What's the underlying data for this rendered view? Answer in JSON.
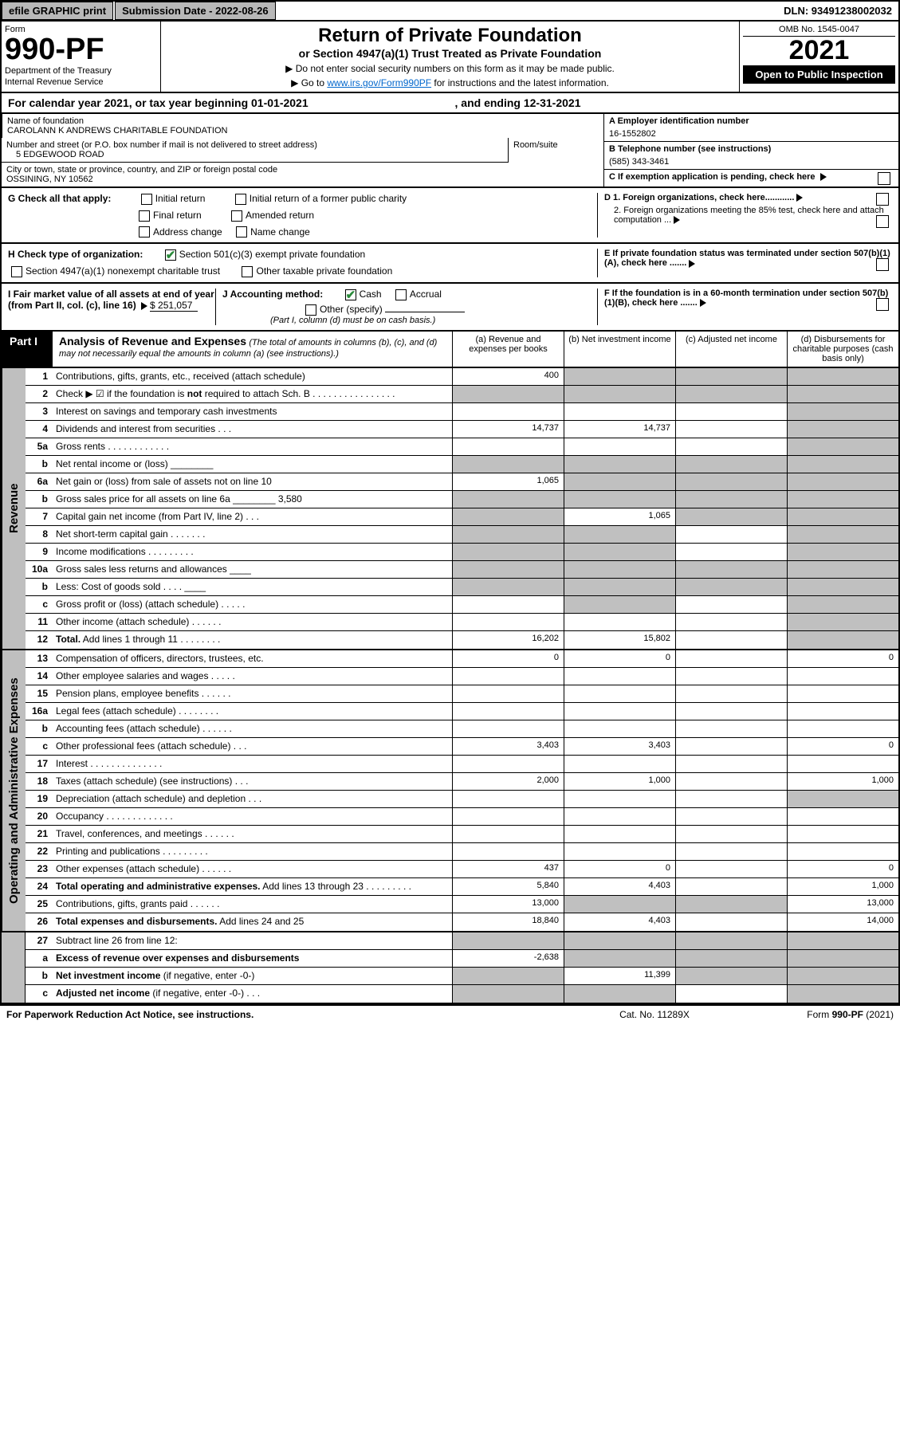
{
  "topbar": {
    "efile": "efile GRAPHIC print",
    "submission": "Submission Date - 2022-08-26",
    "dln": "DLN: 93491238002032"
  },
  "header": {
    "form_label": "Form",
    "form_number": "990-PF",
    "dept1": "Department of the Treasury",
    "dept2": "Internal Revenue Service",
    "title": "Return of Private Foundation",
    "subtitle": "or Section 4947(a)(1) Trust Treated as Private Foundation",
    "instr1": "▶ Do not enter social security numbers on this form as it may be made public.",
    "instr2_pre": "▶ Go to ",
    "instr2_link": "www.irs.gov/Form990PF",
    "instr2_post": " for instructions and the latest information.",
    "omb": "OMB No. 1545-0047",
    "year": "2021",
    "open": "Open to Public Inspection"
  },
  "calyear": {
    "text": "For calendar year 2021, or tax year beginning 01-01-2021",
    "ending": ", and ending 12-31-2021"
  },
  "info": {
    "name_label": "Name of foundation",
    "name": "CAROLANN K ANDREWS CHARITABLE FOUNDATION",
    "addr_label": "Number and street (or P.O. box number if mail is not delivered to street address)",
    "addr": "5 EDGEWOOD ROAD",
    "room_label": "Room/suite",
    "city_label": "City or town, state or province, country, and ZIP or foreign postal code",
    "city": "OSSINING, NY  10562",
    "a_label": "A Employer identification number",
    "a_val": "16-1552802",
    "b_label": "B Telephone number (see instructions)",
    "b_val": "(585) 343-3461",
    "c_label": "C If exemption application is pending, check here"
  },
  "g": {
    "label": "G Check all that apply:",
    "initial": "Initial return",
    "initial_former": "Initial return of a former public charity",
    "final": "Final return",
    "amended": "Amended return",
    "addr_change": "Address change",
    "name_change": "Name change"
  },
  "h": {
    "label": "H Check type of organization:",
    "s501": "Section 501(c)(3) exempt private foundation",
    "s4947": "Section 4947(a)(1) nonexempt charitable trust",
    "other_tax": "Other taxable private foundation"
  },
  "i": {
    "label": "I Fair market value of all assets at end of year (from Part II, col. (c), line 16)",
    "val": "$  251,057"
  },
  "j": {
    "label": "J Accounting method:",
    "cash": "Cash",
    "accrual": "Accrual",
    "other": "Other (specify)",
    "note": "(Part I, column (d) must be on cash basis.)"
  },
  "d": {
    "d1": "D 1. Foreign organizations, check here............",
    "d2": "2. Foreign organizations meeting the 85% test, check here and attach computation ...",
    "e": "E  If private foundation status was terminated under section 507(b)(1)(A), check here .......",
    "f": "F  If the foundation is in a 60-month termination under section 507(b)(1)(B), check here ......."
  },
  "part1": {
    "label": "Part I",
    "title": "Analysis of Revenue and Expenses",
    "note": " (The total of amounts in columns (b), (c), and (d) may not necessarily equal the amounts in column (a) (see instructions).)",
    "col_a": "(a) Revenue and expenses per books",
    "col_b": "(b) Net investment income",
    "col_c": "(c) Adjusted net income",
    "col_d": "(d) Disbursements for charitable purposes (cash basis only)"
  },
  "sides": {
    "revenue": "Revenue",
    "opex": "Operating and Administrative Expenses"
  },
  "rows": [
    {
      "n": "1",
      "d": "Contributions, gifts, grants, etc., received (attach schedule)",
      "a": "400",
      "b": "",
      "bg": [
        "",
        "g",
        "g",
        "g"
      ]
    },
    {
      "n": "2",
      "d": "Check ▶ ☑ if the foundation is <b>not</b> required to attach Sch. B  .  .  .  .  .  .  .  .  .  .  .  .  .  .  .  .",
      "bg": [
        "g",
        "g",
        "g",
        "g"
      ]
    },
    {
      "n": "3",
      "d": "Interest on savings and temporary cash investments",
      "bg": [
        "",
        "",
        "",
        "g"
      ]
    },
    {
      "n": "4",
      "d": "Dividends and interest from securities  .  .  .",
      "a": "14,737",
      "b": "14,737",
      "bg": [
        "",
        "",
        "",
        "g"
      ]
    },
    {
      "n": "5a",
      "d": "Gross rents  .  .  .  .  .  .  .  .  .  .  .  .",
      "bg": [
        "",
        "",
        "",
        "g"
      ]
    },
    {
      "n": "b",
      "d": "Net rental income or (loss)  ________",
      "bg": [
        "g",
        "g",
        "g",
        "g"
      ]
    },
    {
      "n": "6a",
      "d": "Net gain or (loss) from sale of assets not on line 10",
      "a": "1,065",
      "bg": [
        "",
        "g",
        "g",
        "g"
      ]
    },
    {
      "n": "b",
      "d": "Gross sales price for all assets on line 6a ________ 3,580",
      "bg": [
        "g",
        "g",
        "g",
        "g"
      ]
    },
    {
      "n": "7",
      "d": "Capital gain net income (from Part IV, line 2)  .  .  .",
      "b": "1,065",
      "bg": [
        "g",
        "",
        "g",
        "g"
      ]
    },
    {
      "n": "8",
      "d": "Net short-term capital gain  .  .  .  .  .  .  .",
      "bg": [
        "g",
        "g",
        "",
        "g"
      ]
    },
    {
      "n": "9",
      "d": "Income modifications  .  .  .  .  .  .  .  .  .",
      "bg": [
        "g",
        "g",
        "",
        "g"
      ]
    },
    {
      "n": "10a",
      "d": "Gross sales less returns and allowances  ____",
      "bg": [
        "g",
        "g",
        "g",
        "g"
      ]
    },
    {
      "n": "b",
      "d": "Less: Cost of goods sold  .  .  .  .  ____",
      "bg": [
        "g",
        "g",
        "g",
        "g"
      ]
    },
    {
      "n": "c",
      "d": "Gross profit or (loss) (attach schedule)  .  .  .  .  .",
      "bg": [
        "",
        "g",
        "",
        "g"
      ]
    },
    {
      "n": "11",
      "d": "Other income (attach schedule)  .  .  .  .  .  .",
      "bg": [
        "",
        "",
        "",
        "g"
      ]
    },
    {
      "n": "12",
      "d": "<b>Total.</b> Add lines 1 through 11  .  .  .  .  .  .  .  .",
      "a": "16,202",
      "b": "15,802",
      "bg": [
        "",
        "",
        "",
        "g"
      ]
    }
  ],
  "rows2": [
    {
      "n": "13",
      "d": "Compensation of officers, directors, trustees, etc.",
      "a": "0",
      "b": "0",
      "dcol": "0",
      "bg": [
        "",
        "",
        "",
        ""
      ]
    },
    {
      "n": "14",
      "d": "Other employee salaries and wages  .  .  .  .  .",
      "bg": [
        "",
        "",
        "",
        ""
      ]
    },
    {
      "n": "15",
      "d": "Pension plans, employee benefits  .  .  .  .  .  .",
      "bg": [
        "",
        "",
        "",
        ""
      ]
    },
    {
      "n": "16a",
      "d": "Legal fees (attach schedule)  .  .  .  .  .  .  .  .",
      "bg": [
        "",
        "",
        "",
        ""
      ]
    },
    {
      "n": "b",
      "d": "Accounting fees (attach schedule)  .  .  .  .  .  .",
      "bg": [
        "",
        "",
        "",
        ""
      ]
    },
    {
      "n": "c",
      "d": "Other professional fees (attach schedule)  .  .  .",
      "a": "3,403",
      "b": "3,403",
      "dcol": "0",
      "bg": [
        "",
        "",
        "",
        ""
      ]
    },
    {
      "n": "17",
      "d": "Interest  .  .  .  .  .  .  .  .  .  .  .  .  .  .",
      "bg": [
        "",
        "",
        "",
        ""
      ]
    },
    {
      "n": "18",
      "d": "Taxes (attach schedule) (see instructions)  .  .  .",
      "a": "2,000",
      "b": "1,000",
      "dcol": "1,000",
      "bg": [
        "",
        "",
        "",
        ""
      ]
    },
    {
      "n": "19",
      "d": "Depreciation (attach schedule) and depletion  .  .  .",
      "bg": [
        "",
        "",
        "",
        "g"
      ]
    },
    {
      "n": "20",
      "d": "Occupancy  .  .  .  .  .  .  .  .  .  .  .  .  .",
      "bg": [
        "",
        "",
        "",
        ""
      ]
    },
    {
      "n": "21",
      "d": "Travel, conferences, and meetings  .  .  .  .  .  .",
      "bg": [
        "",
        "",
        "",
        ""
      ]
    },
    {
      "n": "22",
      "d": "Printing and publications  .  .  .  .  .  .  .  .  .",
      "bg": [
        "",
        "",
        "",
        ""
      ]
    },
    {
      "n": "23",
      "d": "Other expenses (attach schedule)  .  .  .  .  .  .",
      "a": "437",
      "b": "0",
      "dcol": "0",
      "bg": [
        "",
        "",
        "",
        ""
      ]
    },
    {
      "n": "24",
      "d": "<b>Total operating and administrative expenses.</b> Add lines 13 through 23  .  .  .  .  .  .  .  .  .",
      "a": "5,840",
      "b": "4,403",
      "dcol": "1,000",
      "bg": [
        "",
        "",
        "",
        ""
      ]
    },
    {
      "n": "25",
      "d": "Contributions, gifts, grants paid  .  .  .  .  .  .",
      "a": "13,000",
      "dcol": "13,000",
      "bg": [
        "",
        "g",
        "g",
        ""
      ]
    },
    {
      "n": "26",
      "d": "<b>Total expenses and disbursements.</b> Add lines 24 and 25",
      "a": "18,840",
      "b": "4,403",
      "dcol": "14,000",
      "bg": [
        "",
        "",
        "",
        ""
      ]
    }
  ],
  "rows3": [
    {
      "n": "27",
      "d": "Subtract line 26 from line 12:",
      "bg": [
        "g",
        "g",
        "g",
        "g"
      ]
    },
    {
      "n": "a",
      "d": "<b>Excess of revenue over expenses and disbursements</b>",
      "a": "-2,638",
      "bg": [
        "",
        "g",
        "g",
        "g"
      ]
    },
    {
      "n": "b",
      "d": "<b>Net investment income</b> (if negative, enter -0-)",
      "b": "11,399",
      "bg": [
        "g",
        "",
        "g",
        "g"
      ]
    },
    {
      "n": "c",
      "d": "<b>Adjusted net income</b> (if negative, enter -0-)  .  .  .",
      "bg": [
        "g",
        "g",
        "",
        "g"
      ]
    }
  ],
  "footer": {
    "left": "For Paperwork Reduction Act Notice, see instructions.",
    "center": "Cat. No. 11289X",
    "right": "Form 990-PF (2021)"
  }
}
